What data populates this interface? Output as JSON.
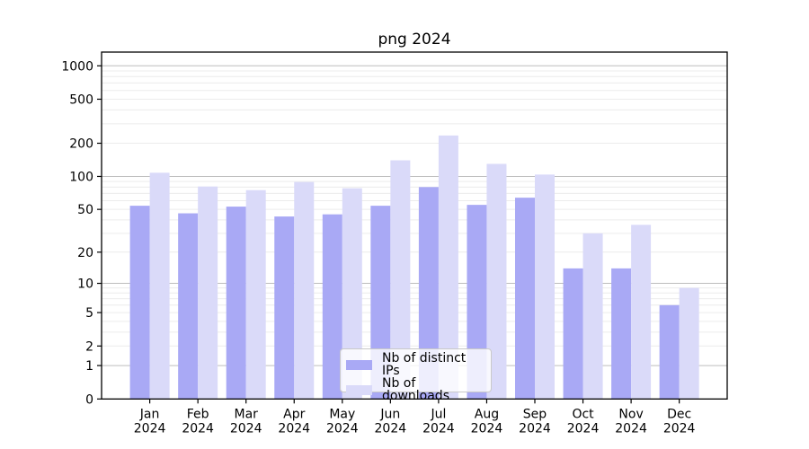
{
  "chart_data": {
    "type": "bar",
    "title": "png 2024",
    "year": "2024",
    "categories": [
      "Jan",
      "Feb",
      "Mar",
      "Apr",
      "May",
      "Jun",
      "Jul",
      "Aug",
      "Sep",
      "Oct",
      "Nov",
      "Dec"
    ],
    "series": [
      {
        "name": "Nb of distinct IPs",
        "color": "#a9a9f5",
        "values": [
          54,
          46,
          53,
          43,
          45,
          54,
          80,
          55,
          64,
          14,
          14,
          6
        ]
      },
      {
        "name": "Nb of downloads",
        "color": "#dadaf9",
        "values": [
          108,
          81,
          75,
          89,
          78,
          140,
          235,
          130,
          104,
          30,
          36,
          9
        ]
      }
    ],
    "y_axis": {
      "scale": "log10(1+v)",
      "ticks": [
        1000,
        500,
        200,
        100,
        50,
        20,
        10,
        5,
        2,
        1,
        0
      ],
      "range": [
        0,
        1330
      ]
    },
    "grid": {
      "major_lines": [
        1,
        10,
        100,
        1000
      ],
      "minor_lines": "2-9 per decade"
    },
    "legend_position": "bottom-center"
  },
  "legend": {
    "items": [
      {
        "label": "Nb of distinct IPs"
      },
      {
        "label": "Nb of downloads"
      }
    ]
  }
}
